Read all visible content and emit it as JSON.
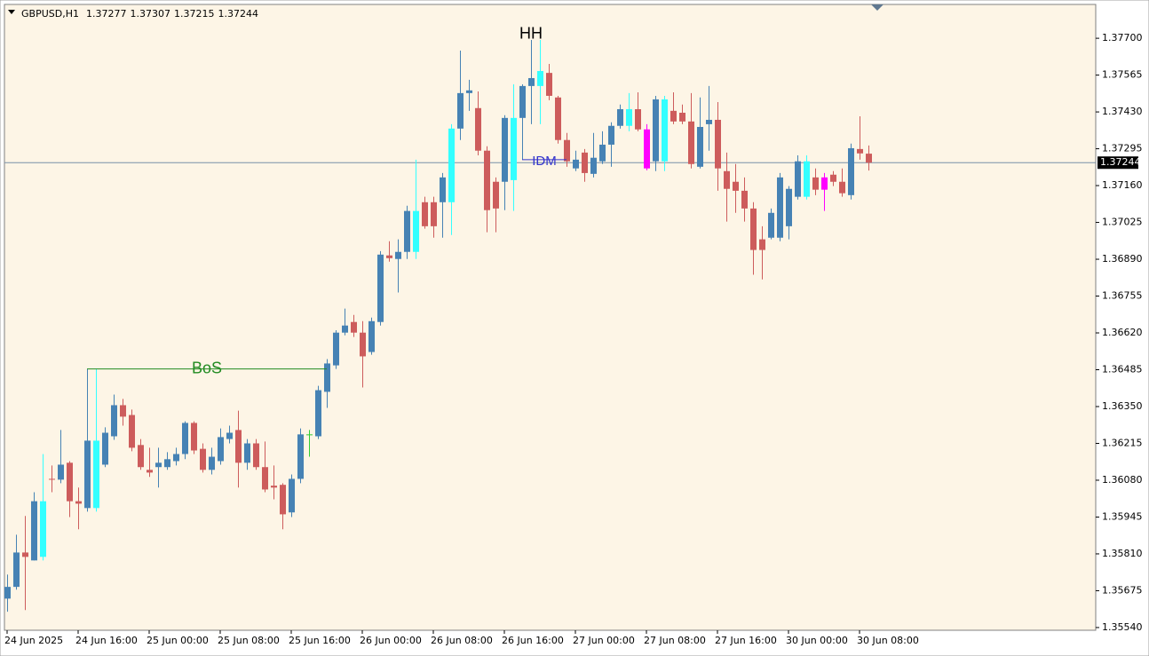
{
  "chart_data": {
    "type": "candlestick",
    "symbol": "GBPUSD,H1",
    "up_color": "#4682b4",
    "down_color": "#cd5c5c",
    "background": "#fdf5e6",
    "ylim": [
      1.3553,
      1.37824
    ],
    "yticks": [
      {
        "value": 1.377,
        "label": "1.37700"
      },
      1.37565,
      {
        "value": 1.3743,
        "label": "1.37430"
      },
      1.37295,
      {
        "value": 1.3716,
        "label": "1.37160"
      },
      1.37025,
      {
        "value": 1.3689,
        "label": "1.36890"
      },
      1.36755,
      {
        "value": 1.3662,
        "label": "1.36620"
      },
      1.36485,
      {
        "value": 1.3635,
        "label": "1.36350"
      },
      1.36215,
      {
        "value": 1.3608,
        "label": "1.36080"
      },
      1.35945,
      {
        "value": 1.3581,
        "label": "1.35810"
      },
      1.35675,
      {
        "value": 1.3554,
        "label": "1.35540"
      }
    ],
    "current_price": 1.37244,
    "categories": [
      "24 Jun 2025",
      null,
      null,
      null,
      null,
      null,
      null,
      null,
      "24 Jun 16:00",
      null,
      null,
      null,
      null,
      null,
      null,
      null,
      "25 Jun 00:00",
      null,
      null,
      null,
      null,
      null,
      null,
      null,
      "25 Jun 08:00",
      null,
      null,
      null,
      null,
      null,
      null,
      null,
      "25 Jun 16:00",
      null,
      null,
      null,
      null,
      null,
      null,
      null,
      "26 Jun 00:00",
      null,
      null,
      null,
      null,
      null,
      null,
      null,
      "26 Jun 08:00",
      null,
      null,
      null,
      null,
      null,
      null,
      null,
      "26 Jun 16:00",
      null,
      null,
      null,
      null,
      null,
      null,
      null,
      "27 Jun 00:00",
      null,
      null,
      null,
      null,
      null,
      null,
      null,
      "27 Jun 08:00",
      null,
      null,
      null,
      null,
      null,
      null,
      null,
      "27 Jun 16:00",
      null,
      null,
      null,
      null,
      null,
      null,
      null,
      "30 Jun 00:00",
      null,
      null,
      null,
      null,
      null,
      null,
      null,
      "30 Jun 08:00",
      null
    ],
    "candles": [
      [
        1.35646,
        1.35734,
        1.35598,
        1.35689
      ],
      [
        1.35689,
        1.3588,
        1.35679,
        1.35815
      ],
      [
        1.35815,
        1.35949,
        1.35604,
        1.35799
      ],
      [
        1.35786,
        1.36036,
        1.35786,
        1.36003
      ],
      [
        1.35799,
        1.36176,
        1.35786,
        1.36003
      ],
      [
        1.36085,
        1.36134,
        1.36036,
        1.36082
      ],
      [
        1.36082,
        1.36264,
        1.36069,
        1.36137
      ],
      [
        1.36144,
        1.3615,
        1.35945,
        1.36003
      ],
      [
        1.36003,
        1.36053,
        1.359,
        1.35994
      ],
      [
        1.35978,
        1.36488,
        1.35965,
        1.36225
      ],
      [
        1.35978,
        1.36488,
        1.35965,
        1.36225
      ],
      [
        1.36137,
        1.36274,
        1.36128,
        1.36254
      ],
      [
        1.36241,
        1.36394,
        1.36228,
        1.36355
      ],
      [
        1.36355,
        1.36378,
        1.3628,
        1.36313
      ],
      [
        1.36319,
        1.36339,
        1.36186,
        1.36199
      ],
      [
        1.36209,
        1.36231,
        1.36118,
        1.36128
      ],
      [
        1.36118,
        1.36199,
        1.36092,
        1.36108
      ],
      [
        1.36128,
        1.36199,
        1.36053,
        1.36144
      ],
      [
        1.36128,
        1.36183,
        1.36118,
        1.36157
      ],
      [
        1.3615,
        1.36199,
        1.36134,
        1.36176
      ],
      [
        1.36176,
        1.36296,
        1.36157,
        1.3629
      ],
      [
        1.3629,
        1.36296,
        1.36176,
        1.36189
      ],
      [
        1.36195,
        1.36215,
        1.36108,
        1.36118
      ],
      [
        1.36118,
        1.36199,
        1.36101,
        1.36166
      ],
      [
        1.3615,
        1.3627,
        1.36137,
        1.36238
      ],
      [
        1.36231,
        1.3628,
        1.36215,
        1.36254
      ],
      [
        1.36264,
        1.36335,
        1.36053,
        1.36144
      ],
      [
        1.36144,
        1.36231,
        1.36118,
        1.36215
      ],
      [
        1.36215,
        1.36231,
        1.36118,
        1.36128
      ],
      [
        1.36128,
        1.36222,
        1.36036,
        1.36046
      ],
      [
        1.3606,
        1.36134,
        1.3601,
        1.36053
      ],
      [
        1.36063,
        1.36069,
        1.359,
        1.35955
      ],
      [
        1.35962,
        1.36101,
        1.35945,
        1.36085
      ],
      [
        1.36085,
        1.3627,
        1.36069,
        1.36248
      ],
      [
        1.36248,
        1.36264,
        1.36166,
        1.36248
      ],
      [
        1.36241,
        1.36426,
        1.36231,
        1.3641
      ],
      [
        1.36404,
        1.36524,
        1.36345,
        1.36508
      ],
      [
        1.36501,
        1.3663,
        1.36488,
        1.36621
      ],
      [
        1.36621,
        1.36709,
        1.36611,
        1.36647
      ],
      [
        1.3666,
        1.36686,
        1.36605,
        1.36621
      ],
      [
        1.36621,
        1.36663,
        1.3642,
        1.36534
      ],
      [
        1.3655,
        1.36676,
        1.3654,
        1.36663
      ],
      [
        1.3666,
        1.3692,
        1.36647,
        1.36907
      ],
      [
        1.36904,
        1.36956,
        1.36881,
        1.36894
      ],
      [
        1.36891,
        1.36963,
        1.36768,
        1.36917
      ],
      [
        1.36917,
        1.37086,
        1.36891,
        1.37067
      ],
      [
        1.36917,
        1.37255,
        1.36891,
        1.37067
      ],
      [
        1.37099,
        1.37119,
        1.37002,
        1.37011
      ],
      [
        1.37099,
        1.37119,
        1.36969,
        1.37011
      ],
      [
        1.37099,
        1.37206,
        1.36969,
        1.3719
      ],
      [
        1.37099,
        1.37385,
        1.36979,
        1.37369
      ],
      [
        1.37369,
        1.37655,
        1.37327,
        1.37499
      ],
      [
        1.37499,
        1.37548,
        1.37434,
        1.37509
      ],
      [
        1.37444,
        1.37505,
        1.37271,
        1.37288
      ],
      [
        1.37288,
        1.37304,
        1.36989,
        1.3707
      ],
      [
        1.37174,
        1.3719,
        1.36989,
        1.37076
      ],
      [
        1.37174,
        1.37418,
        1.3707,
        1.37408
      ],
      [
        1.3718,
        1.37531,
        1.37067,
        1.37408
      ],
      [
        1.37408,
        1.37531,
        1.37255,
        1.37525
      ],
      [
        1.37525,
        1.37694,
        1.37385,
        1.37554
      ],
      [
        1.37525,
        1.37694,
        1.37385,
        1.3758
      ],
      [
        1.37573,
        1.37606,
        1.37473,
        1.37489
      ],
      [
        1.37483,
        1.37489,
        1.37314,
        1.37327
      ],
      [
        1.37327,
        1.37353,
        1.37229,
        1.37249
      ],
      [
        1.37223,
        1.37288,
        1.37213,
        1.37255
      ],
      [
        1.37281,
        1.37294,
        1.37174,
        1.37206
      ],
      [
        1.37203,
        1.37353,
        1.3719,
        1.37262
      ],
      [
        1.37249,
        1.37359,
        1.37239,
        1.3731
      ],
      [
        1.3731,
        1.37392,
        1.37229,
        1.37379
      ],
      [
        1.37379,
        1.37457,
        1.37369,
        1.3744
      ],
      [
        1.37379,
        1.37499,
        1.37359,
        1.3744
      ],
      [
        1.3744,
        1.37502,
        1.37359,
        1.37366
      ],
      [
        1.37366,
        1.37385,
        1.37216,
        1.37223
      ],
      [
        1.37249,
        1.37489,
        1.37213,
        1.37476
      ],
      [
        1.37249,
        1.37489,
        1.37213,
        1.37476
      ],
      [
        1.37434,
        1.37502,
        1.37385,
        1.37395
      ],
      [
        1.37427,
        1.37457,
        1.37385,
        1.37395
      ],
      [
        1.37395,
        1.37499,
        1.37223,
        1.37239
      ],
      [
        1.37229,
        1.37483,
        1.37223,
        1.37375
      ],
      [
        1.37385,
        1.37525,
        1.37288,
        1.37401
      ],
      [
        1.37401,
        1.37466,
        1.37141,
        1.37223
      ],
      [
        1.37213,
        1.37281,
        1.37028,
        1.37148
      ],
      [
        1.37174,
        1.37239,
        1.3706,
        1.37141
      ],
      [
        1.37141,
        1.3719,
        1.37028,
        1.37076
      ],
      [
        1.37076,
        1.37099,
        1.36833,
        1.36924
      ],
      [
        1.36963,
        1.37011,
        1.36816,
        1.36924
      ],
      [
        1.36969,
        1.37076,
        1.36963,
        1.3706
      ],
      [
        1.36969,
        1.37206,
        1.36956,
        1.3719
      ],
      [
        1.37011,
        1.37158,
        1.36963,
        1.37148
      ],
      [
        1.37119,
        1.37271,
        1.37109,
        1.37249
      ],
      [
        1.37119,
        1.37271,
        1.37109,
        1.37249
      ],
      [
        1.3719,
        1.37223,
        1.37125,
        1.37145
      ],
      [
        1.3719,
        1.37206,
        1.37067,
        1.37145
      ],
      [
        1.372,
        1.37213,
        1.37158,
        1.37174
      ],
      [
        1.37174,
        1.37223,
        1.37119,
        1.37132
      ],
      [
        1.37125,
        1.37314,
        1.37109,
        1.37297
      ],
      [
        1.37294,
        1.37414,
        1.37255,
        1.37278
      ],
      [
        1.37277,
        1.37307,
        1.37215,
        1.37244
      ]
    ],
    "highlights": [
      {
        "candle": 4,
        "color": "#33ffff"
      },
      {
        "candle": 10,
        "color": "#33ffff"
      },
      {
        "candle": 34,
        "color": "#32cd32"
      },
      {
        "candle": 46,
        "color": "#33ffff"
      },
      {
        "candle": 50,
        "color": "#33ffff"
      },
      {
        "candle": 57,
        "color": "#33ffff"
      },
      {
        "candle": 60,
        "color": "#33ffff"
      },
      {
        "candle": 70,
        "color": "#33ffff"
      },
      {
        "candle": 72,
        "color": "#ff00ff"
      },
      {
        "candle": 74,
        "color": "#33ffff"
      },
      {
        "candle": 90,
        "color": "#33ffff"
      },
      {
        "candle": 92,
        "color": "#ff00ff"
      }
    ],
    "annotations": [
      {
        "text": "BoS",
        "level": 1.36488,
        "start": 9,
        "end": 36,
        "color": "#228b22"
      },
      {
        "text": "IDM",
        "level": 1.37255,
        "start": 58,
        "end": 63,
        "color": "#3333cc"
      },
      {
        "text": "HH",
        "candle": 59,
        "color": "#000000"
      }
    ]
  }
}
